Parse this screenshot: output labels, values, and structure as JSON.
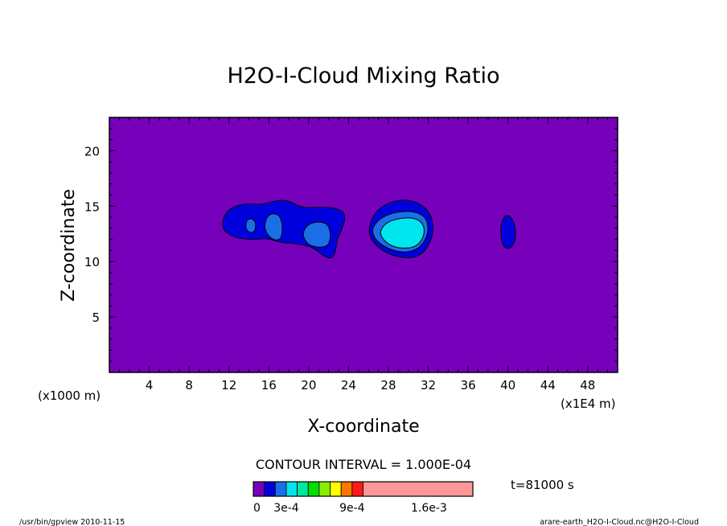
{
  "chart_data": {
    "type": "contour",
    "title": "H2O-I-Cloud Mixing Ratio",
    "xlabel": "X-coordinate",
    "ylabel": "Z-coordinate",
    "x_ticks": [
      "4",
      "8",
      "12",
      "16",
      "20",
      "24",
      "28",
      "32",
      "36",
      "40",
      "44",
      "48"
    ],
    "y_ticks": [
      "5",
      "10",
      "15",
      "20"
    ],
    "x_unit_left": "(x1000 m)",
    "x_unit_right": "(x1E4 m)",
    "xlim": [
      0,
      51
    ],
    "ylim": [
      0,
      23
    ],
    "contour_interval_text": "CONTOUR INTERVAL = 1.000E-04",
    "time_text": "t=81000 s",
    "colorbar": {
      "colors": [
        "#7700bb",
        "#0000dd",
        "#1a6fe6",
        "#00e5ee",
        "#00e8a0",
        "#00dd00",
        "#88ee00",
        "#ffff00",
        "#ff7700",
        "#ff1a1a",
        "#ff9999"
      ],
      "labels": [
        {
          "text": "0",
          "value": 0
        },
        {
          "text": "3e-4",
          "value": 3
        },
        {
          "text": "9e-4",
          "value": 9
        },
        {
          "text": "1.6e-3",
          "value": 16
        }
      ]
    },
    "background_color": "#7700bb",
    "features": [
      {
        "name": "left cloud band",
        "x_range": [
          11.5,
          24
        ],
        "z_range": [
          10.5,
          15.5
        ],
        "max_level": 2
      },
      {
        "name": "central cloud",
        "x_range": [
          26,
          33
        ],
        "z_range": [
          10.5,
          15.2
        ],
        "max_level": 3
      },
      {
        "name": "right small cell",
        "x_range": [
          39.3,
          40.8
        ],
        "z_range": [
          11.2,
          14
        ],
        "max_level": 1
      }
    ]
  },
  "footer": {
    "left": "/usr/bin/gpview   2010-11-15",
    "right": "arare-earth_H2O-I-Cloud.nc@H2O-I-Cloud"
  }
}
